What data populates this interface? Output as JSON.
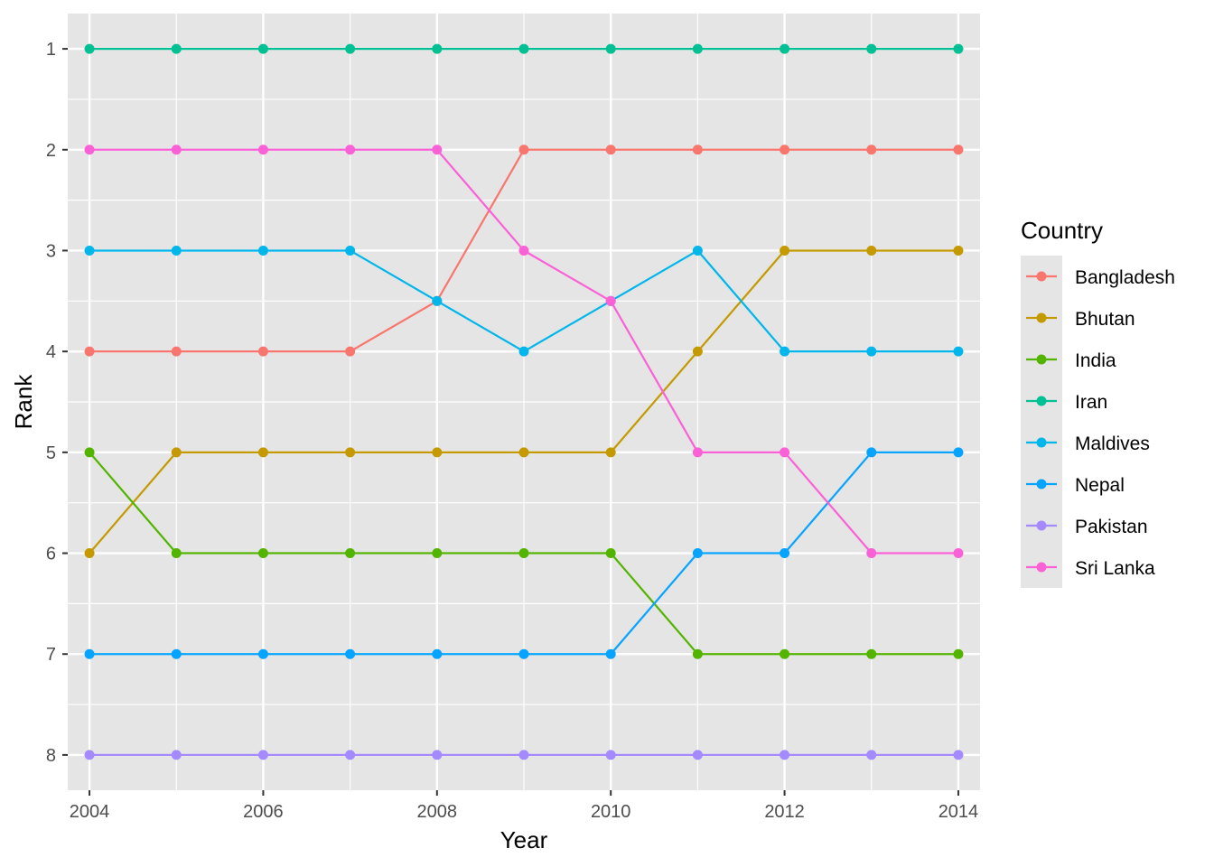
{
  "chart_data": {
    "type": "line",
    "xlabel": "Year",
    "ylabel": "Rank",
    "x": [
      2004,
      2005,
      2006,
      2007,
      2008,
      2009,
      2010,
      2011,
      2012,
      2013,
      2014
    ],
    "x_ticks": [
      "2004",
      "2006",
      "2008",
      "2010",
      "2012",
      "2014"
    ],
    "y_ticks": [
      "1",
      "2",
      "3",
      "4",
      "5",
      "6",
      "7",
      "8"
    ],
    "xlim": [
      2003.75,
      2014.25
    ],
    "ylim": [
      0.65,
      8.35
    ],
    "y_reversed": true,
    "grid": true,
    "legend": {
      "title": "Country",
      "placement": "right"
    },
    "background": "#e5e5e5",
    "gridline_color": "#ffffff",
    "series": [
      {
        "name": "Bangladesh",
        "color": "#f8766d",
        "values": [
          4,
          4,
          4,
          4,
          3.5,
          2,
          2,
          2,
          2,
          2,
          2
        ]
      },
      {
        "name": "Bhutan",
        "color": "#c49a00",
        "values": [
          6,
          5,
          5,
          5,
          5,
          5,
          5,
          4,
          3,
          3,
          3
        ]
      },
      {
        "name": "India",
        "color": "#53b400",
        "values": [
          5,
          6,
          6,
          6,
          6,
          6,
          6,
          7,
          7,
          7,
          7
        ]
      },
      {
        "name": "Iran",
        "color": "#00c094",
        "values": [
          1,
          1,
          1,
          1,
          1,
          1,
          1,
          1,
          1,
          1,
          1
        ]
      },
      {
        "name": "Maldives",
        "color": "#00b6eb",
        "values": [
          3,
          3,
          3,
          3,
          3.5,
          4,
          3.5,
          3,
          4,
          4,
          4
        ]
      },
      {
        "name": "Nepal",
        "color": "#06a4ff",
        "values": [
          7,
          7,
          7,
          7,
          7,
          7,
          7,
          6,
          6,
          5,
          5
        ]
      },
      {
        "name": "Pakistan",
        "color": "#a58aff",
        "values": [
          8,
          8,
          8,
          8,
          8,
          8,
          8,
          8,
          8,
          8,
          8
        ]
      },
      {
        "name": "Sri Lanka",
        "color": "#fb61d7",
        "values": [
          2,
          2,
          2,
          2,
          2,
          3,
          3.5,
          5,
          5,
          6,
          6
        ]
      }
    ]
  }
}
